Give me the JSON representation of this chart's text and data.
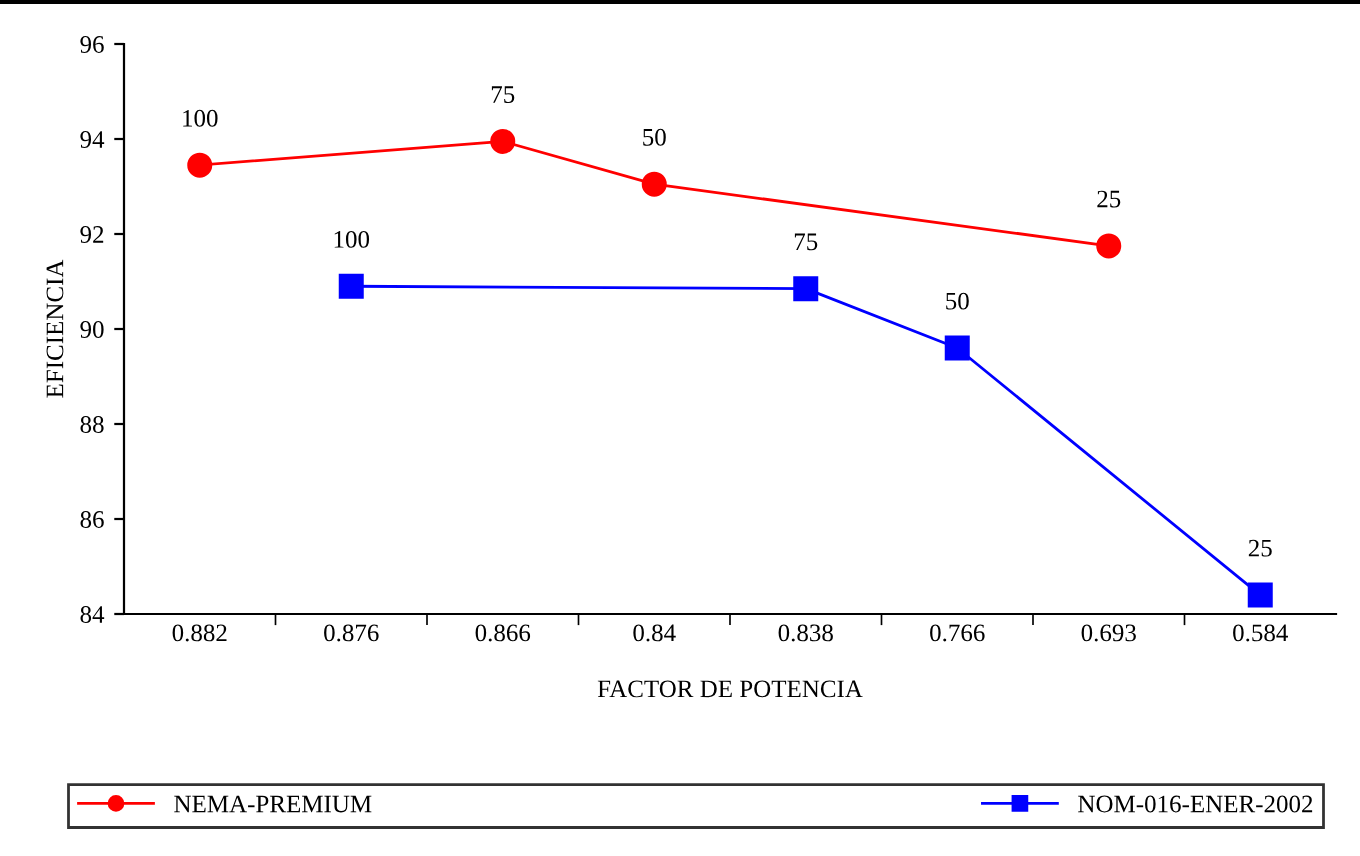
{
  "chart_data": {
    "type": "line",
    "xlabel": "FACTOR DE POTENCIA",
    "ylabel": "EFICIENCIA",
    "categories": [
      "0.882",
      "0.876",
      "0.866",
      "0.84",
      "0.838",
      "0.766",
      "0.693",
      "0.584"
    ],
    "series": [
      {
        "name": "NEMA-PREMIUM",
        "color": "#ff0000",
        "marker": "circle",
        "values": [
          93.45,
          null,
          93.95,
          93.05,
          null,
          null,
          91.75,
          null
        ]
      },
      {
        "name": "NOM-016-ENER-2002",
        "color": "#0000ff",
        "marker": "square",
        "values": [
          null,
          90.9,
          null,
          null,
          90.85,
          89.6,
          null,
          84.4
        ]
      }
    ],
    "ylim": [
      84,
      96
    ],
    "yticks": [
      84,
      86,
      88,
      90,
      92,
      94,
      96
    ],
    "grid": false,
    "legend": "bottom",
    "line_style": "solid",
    "annotations": [
      {
        "text": "100",
        "x": "0.882",
        "y": 93.45
      },
      {
        "text": "75",
        "x": "0.866",
        "y": 93.95
      },
      {
        "text": "50",
        "x": "0.84",
        "y": 93.05
      },
      {
        "text": "25",
        "x": "0.693",
        "y": 91.75
      },
      {
        "text": "100",
        "x": "0.876",
        "y": 90.9
      },
      {
        "text": "75",
        "x": "0.838",
        "y": 90.85
      },
      {
        "text": "50",
        "x": "0.766",
        "y": 89.6
      },
      {
        "text": "25",
        "x": "0.584",
        "y": 84.4
      }
    ]
  }
}
